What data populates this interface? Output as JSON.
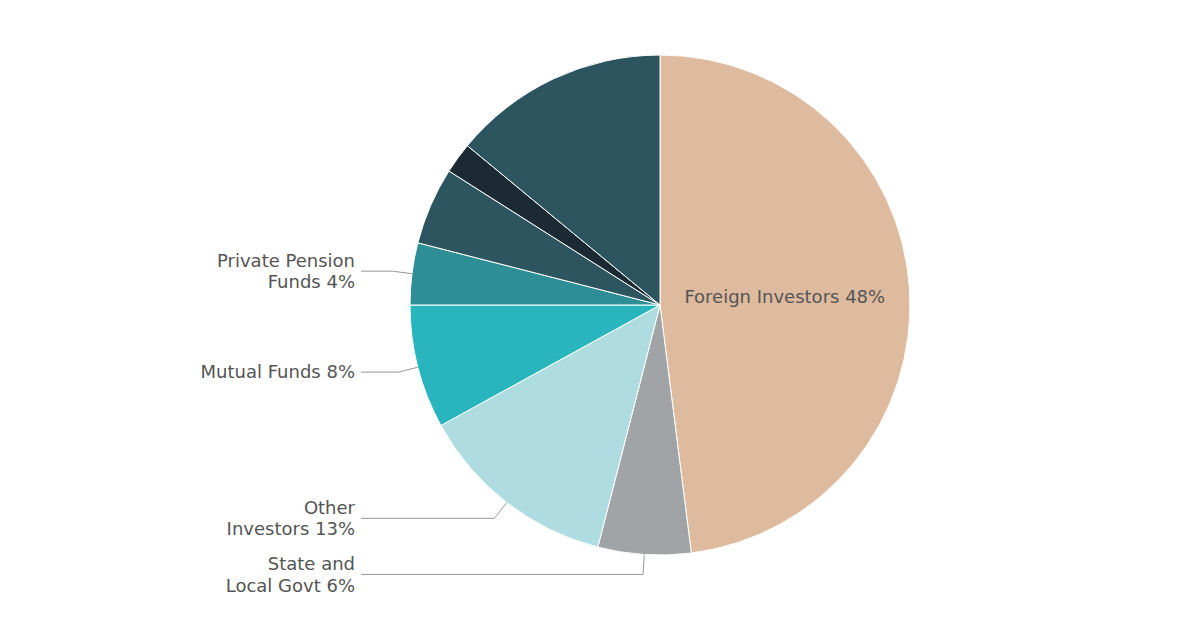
{
  "chart_data": {
    "type": "pie",
    "categories": [
      "Foreign Investors 48%",
      "State and\nLocal Govt 6%",
      "Other\nInvestors 13%",
      "Mutual Funds 8%",
      "Private Pension\nFunds 4%",
      null,
      null,
      null
    ],
    "values": [
      48,
      6,
      13,
      8,
      4,
      5,
      2,
      14
    ],
    "colors": [
      "#DEBA9E",
      "#A0A4A6",
      "#AEDCE0",
      "#28B5BE",
      "#2E8E96",
      "#2D5560",
      "#1C2B33",
      "#2D5560"
    ]
  }
}
